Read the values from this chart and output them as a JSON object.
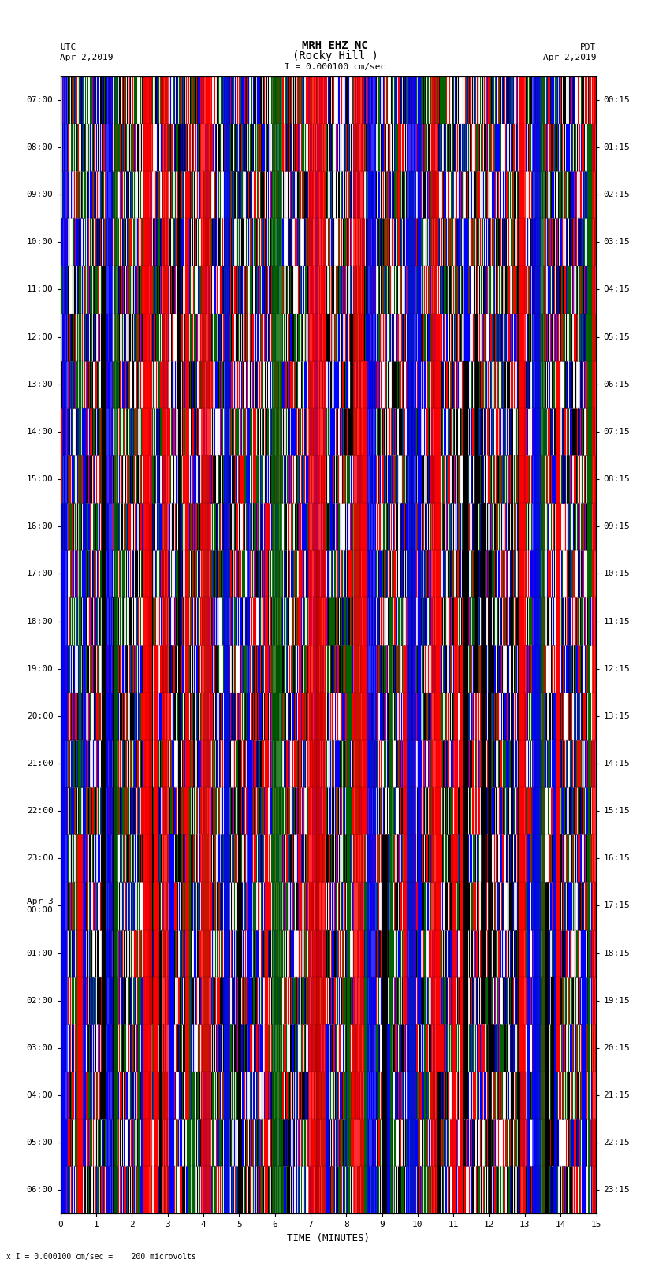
{
  "title_line1": "MRH EHZ NC",
  "title_line2": "(Rocky Hill )",
  "scale_label": "I = 0.000100 cm/sec",
  "bottom_label": "x I = 0.000100 cm/sec =    200 microvolts",
  "utc_label": "UTC",
  "utc_date": "Apr 2,2019",
  "pdt_label": "PDT",
  "pdt_date": "Apr 2,2019",
  "xlabel": "TIME (MINUTES)",
  "xlim": [
    0,
    15
  ],
  "xticks": [
    0,
    1,
    2,
    3,
    4,
    5,
    6,
    7,
    8,
    9,
    10,
    11,
    12,
    13,
    14,
    15
  ],
  "left_ytick_labels": [
    "07:00",
    "08:00",
    "09:00",
    "10:00",
    "11:00",
    "12:00",
    "13:00",
    "14:00",
    "15:00",
    "16:00",
    "17:00",
    "18:00",
    "19:00",
    "20:00",
    "21:00",
    "22:00",
    "23:00",
    "Apr 3\n00:00",
    "01:00",
    "02:00",
    "03:00",
    "04:00",
    "05:00",
    "06:00"
  ],
  "right_ytick_labels": [
    "00:15",
    "01:15",
    "02:15",
    "03:15",
    "04:15",
    "05:15",
    "06:15",
    "07:15",
    "08:15",
    "09:15",
    "10:15",
    "11:15",
    "12:15",
    "13:15",
    "14:15",
    "15:15",
    "16:15",
    "17:15",
    "18:15",
    "19:15",
    "20:15",
    "21:15",
    "22:15",
    "23:15"
  ],
  "n_rows": 24,
  "bg_color": "white",
  "plot_bg_color": "white",
  "colors": [
    "#FF0000",
    "#0000FF",
    "#006400",
    "#000000"
  ],
  "title_fontsize": 10,
  "axis_fontsize": 9,
  "tick_fontsize": 8
}
